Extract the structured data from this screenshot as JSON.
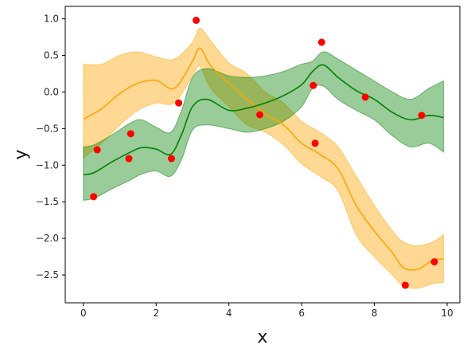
{
  "chart_data": {
    "type": "line",
    "xlabel": "x",
    "ylabel": "y",
    "xlim": [
      -0.5,
      10.35
    ],
    "ylim": [
      -2.88,
      1.17
    ],
    "xticks": [
      0,
      2,
      4,
      6,
      8,
      10
    ],
    "yticks": [
      1.0,
      0.5,
      0.0,
      -0.5,
      -1.0,
      -1.5,
      -2.0,
      -2.5
    ],
    "xtick_labels": [
      "0",
      "2",
      "4",
      "6",
      "8",
      "10"
    ],
    "ytick_labels": [
      "1.0",
      "0.5",
      "0.0",
      "−0.5",
      "−1.0",
      "−1.5",
      "−2.0",
      "−2.5"
    ],
    "grid": false,
    "colors": {
      "orange": "#ffa500",
      "green": "#008000",
      "points": "#ff0000",
      "orange_band": "#ffa500",
      "green_band": "#008000"
    },
    "series": [
      {
        "color": "orange",
        "x": [
          0.0,
          0.5,
          1.0,
          1.5,
          2.0,
          2.5,
          3.0,
          3.2,
          3.5,
          4.0,
          4.5,
          5.0,
          5.5,
          6.0,
          6.5,
          7.0,
          7.5,
          8.0,
          8.5,
          8.8,
          9.2,
          9.6,
          9.9
        ],
        "y": [
          -0.37,
          -0.23,
          -0.02,
          0.12,
          0.16,
          0.05,
          0.42,
          0.6,
          0.36,
          0.12,
          -0.1,
          -0.3,
          -0.45,
          -0.7,
          -0.85,
          -1.05,
          -1.55,
          -1.9,
          -2.2,
          -2.4,
          -2.42,
          -2.3,
          -2.28
        ],
        "upper": [
          0.38,
          0.38,
          0.5,
          0.55,
          0.48,
          0.45,
          0.68,
          0.87,
          0.7,
          0.4,
          0.25,
          0.0,
          -0.15,
          -0.4,
          -0.55,
          -0.75,
          -1.15,
          -1.55,
          -1.9,
          -2.05,
          -2.1,
          -2.05,
          -1.95
        ],
        "lower": [
          -0.9,
          -0.7,
          -0.45,
          -0.25,
          -0.15,
          -0.15,
          0.22,
          0.35,
          0.05,
          -0.2,
          -0.45,
          -0.55,
          -0.72,
          -0.98,
          -1.15,
          -1.35,
          -1.95,
          -2.25,
          -2.5,
          -2.65,
          -2.68,
          -2.62,
          -2.6
        ]
      },
      {
        "color": "green",
        "x": [
          0.0,
          0.3,
          0.8,
          1.3,
          1.6,
          2.0,
          2.4,
          2.7,
          3.0,
          3.4,
          4.0,
          4.5,
          5.0,
          5.5,
          6.0,
          6.3,
          6.6,
          7.0,
          7.5,
          8.0,
          8.5,
          9.0,
          9.5,
          9.9
        ],
        "y": [
          -1.13,
          -1.1,
          -0.95,
          -0.82,
          -0.76,
          -0.78,
          -0.85,
          -0.58,
          -0.2,
          -0.1,
          -0.25,
          -0.22,
          -0.15,
          -0.05,
          0.1,
          0.28,
          0.37,
          0.2,
          0.02,
          -0.1,
          -0.28,
          -0.38,
          -0.32,
          -0.35
        ],
        "upper": [
          -0.75,
          -0.72,
          -0.58,
          -0.42,
          -0.38,
          -0.48,
          -0.55,
          -0.25,
          0.2,
          0.32,
          0.22,
          0.2,
          0.22,
          0.28,
          0.38,
          0.42,
          0.55,
          0.45,
          0.3,
          0.15,
          0.0,
          -0.1,
          0.05,
          0.15
        ],
        "lower": [
          -1.48,
          -1.45,
          -1.32,
          -1.2,
          -1.12,
          -1.08,
          -1.15,
          -0.92,
          -0.52,
          -0.45,
          -0.5,
          -0.55,
          -0.5,
          -0.4,
          -0.2,
          0.05,
          0.08,
          -0.1,
          -0.25,
          -0.38,
          -0.6,
          -0.75,
          -0.7,
          -0.82
        ]
      }
    ],
    "points": {
      "x": [
        0.28,
        0.38,
        1.25,
        1.3,
        2.42,
        2.62,
        3.1,
        4.85,
        6.32,
        6.37,
        6.55,
        7.75,
        8.85,
        9.3,
        9.65
      ],
      "y": [
        -1.43,
        -0.79,
        -0.91,
        -0.57,
        -0.91,
        -0.15,
        0.98,
        -0.31,
        0.09,
        -0.7,
        0.68,
        -0.07,
        -2.64,
        -0.32,
        -2.32
      ]
    }
  }
}
